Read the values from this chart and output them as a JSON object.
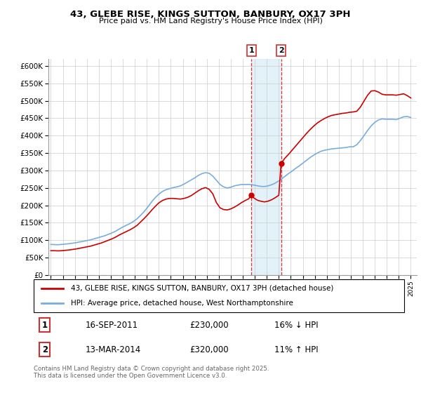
{
  "title": "43, GLEBE RISE, KINGS SUTTON, BANBURY, OX17 3PH",
  "subtitle": "Price paid vs. HM Land Registry's House Price Index (HPI)",
  "legend_line1": "43, GLEBE RISE, KINGS SUTTON, BANBURY, OX17 3PH (detached house)",
  "legend_line2": "HPI: Average price, detached house, West Northamptonshire",
  "footnote": "Contains HM Land Registry data © Crown copyright and database right 2025.\nThis data is licensed under the Open Government Licence v3.0.",
  "transaction1_date": "16-SEP-2011",
  "transaction1_price": "£230,000",
  "transaction1_hpi": "16% ↓ HPI",
  "transaction2_date": "13-MAR-2014",
  "transaction2_price": "£320,000",
  "transaction2_hpi": "11% ↑ HPI",
  "vline1_x": 2011.71,
  "vline2_x": 2014.19,
  "house_color": "#cc0000",
  "hpi_color": "#7aaddc",
  "background_color": "#ffffff",
  "ylim": [
    0,
    620000
  ],
  "xlim": [
    1994.8,
    2025.5
  ],
  "marker1_y": 230000,
  "marker2_y": 320000
}
